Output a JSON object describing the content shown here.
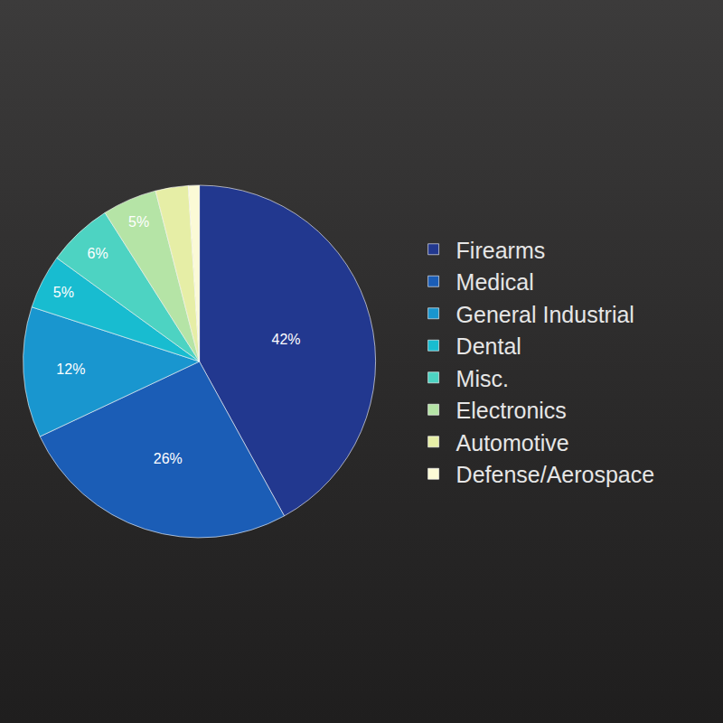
{
  "chart_data": {
    "type": "pie",
    "categories": [
      "Firearms",
      "Medical",
      "General Industrial",
      "Dental",
      "Misc.",
      "Electronics",
      "Automotive",
      "Defense/Aerospace"
    ],
    "values": [
      42,
      26,
      12,
      5,
      6,
      5,
      3,
      1
    ],
    "value_labels": [
      "42%",
      "26%",
      "12%",
      "5%",
      "6%",
      "5%",
      null,
      null
    ],
    "colors": [
      "#22388f",
      "#1b5db6",
      "#1996cf",
      "#18bcd0",
      "#4dd3c2",
      "#b5e4a6",
      "#e6eea6",
      "#fbfad6"
    ],
    "data_labels": true,
    "legend": "right"
  }
}
